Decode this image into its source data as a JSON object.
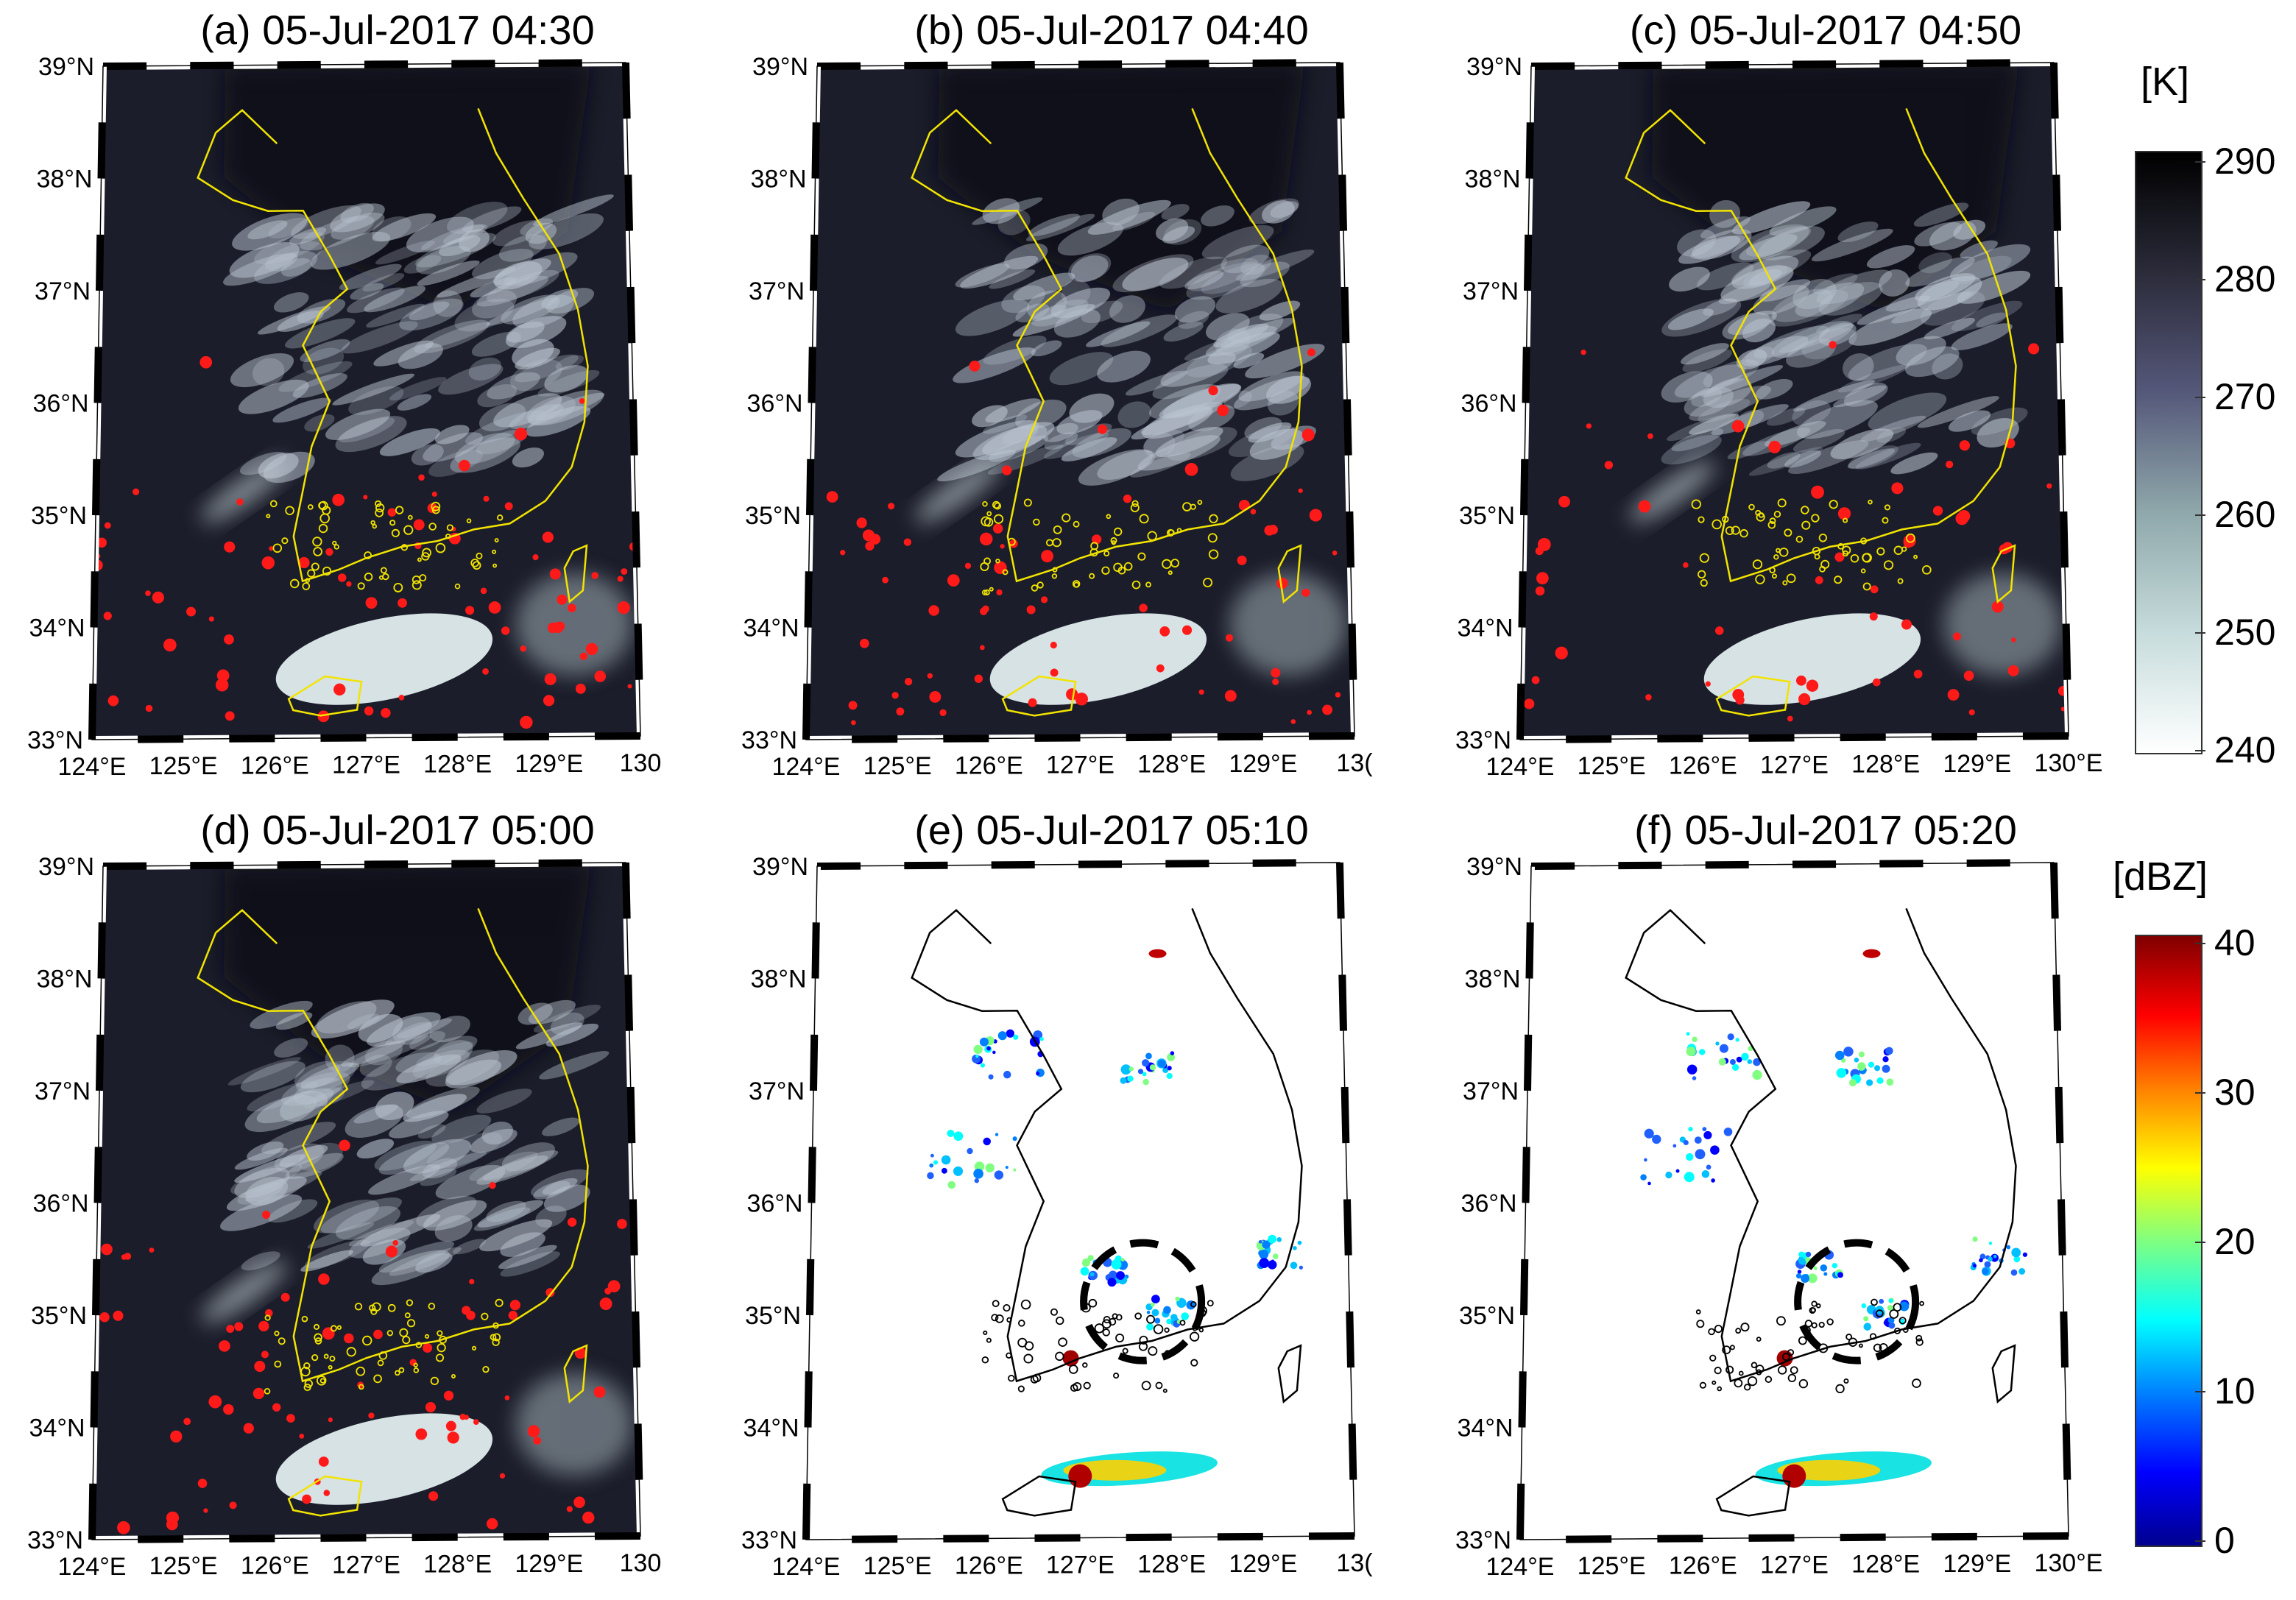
{
  "panels": [
    {
      "title": "(a) 05-Jul-2017 04:30",
      "kind": "ir",
      "marker": false,
      "lat_labels": [
        "39°N",
        "38°N",
        "37°N",
        "36°N",
        "35°N",
        "34°N",
        "33°N"
      ],
      "lon_labels": [
        "124°E",
        "125°E",
        "126°E",
        "127°E",
        "128°E",
        "129°E",
        "130"
      ]
    },
    {
      "title": "(b) 05-Jul-2017 04:40",
      "kind": "ir",
      "marker": false,
      "lat_labels": [
        "39°N",
        "38°N",
        "37°N",
        "36°N",
        "35°N",
        "34°N",
        "33°N"
      ],
      "lon_labels": [
        "124°E",
        "125°E",
        "126°E",
        "127°E",
        "128°E",
        "129°E",
        "13("
      ]
    },
    {
      "title": "(c) 05-Jul-2017 04:50",
      "kind": "ir",
      "marker": false,
      "lat_labels": [
        "39°N",
        "38°N",
        "37°N",
        "36°N",
        "35°N",
        "34°N",
        "33°N"
      ],
      "lon_labels": [
        "124°E",
        "125°E",
        "126°E",
        "127°E",
        "128°E",
        "129°E",
        "130°E"
      ]
    },
    {
      "title": "(d) 05-Jul-2017 05:00",
      "kind": "ir",
      "marker": false,
      "lat_labels": [
        "39°N",
        "38°N",
        "37°N",
        "36°N",
        "35°N",
        "34°N",
        "33°N"
      ],
      "lon_labels": [
        "124°E",
        "125°E",
        "126°E",
        "127°E",
        "128°E",
        "129°E",
        "130"
      ]
    },
    {
      "title": "(e) 05-Jul-2017 05:10",
      "kind": "radar",
      "marker": true,
      "lat_labels": [
        "39°N",
        "38°N",
        "37°N",
        "36°N",
        "35°N",
        "34°N",
        "33°N"
      ],
      "lon_labels": [
        "124°E",
        "125°E",
        "126°E",
        "127°E",
        "128°E",
        "129°E",
        "13("
      ]
    },
    {
      "title": "(f) 05-Jul-2017 05:20",
      "kind": "radar",
      "marker": true,
      "lat_labels": [
        "39°N",
        "38°N",
        "37°N",
        "36°N",
        "35°N",
        "34°N",
        "33°N"
      ],
      "lon_labels": [
        "124°E",
        "125°E",
        "126°E",
        "127°E",
        "128°E",
        "129°E",
        "130°E"
      ]
    }
  ],
  "colorbar_k": {
    "unit": "[K]",
    "ticks": [
      "290",
      "280",
      "270",
      "260",
      "250",
      "240"
    ],
    "min": 240,
    "max": 290
  },
  "colorbar_dbz": {
    "unit": "[dBZ]",
    "ticks": [
      "40",
      "30",
      "20",
      "10",
      "0"
    ],
    "min": 0,
    "max": 40
  },
  "colors": {
    "coast_ir": "#f2e400",
    "coast_radar": "#000000",
    "convective": "#ff1a1a",
    "ir_dark": "#1b1d2a",
    "cloud": "#dde8ea"
  }
}
